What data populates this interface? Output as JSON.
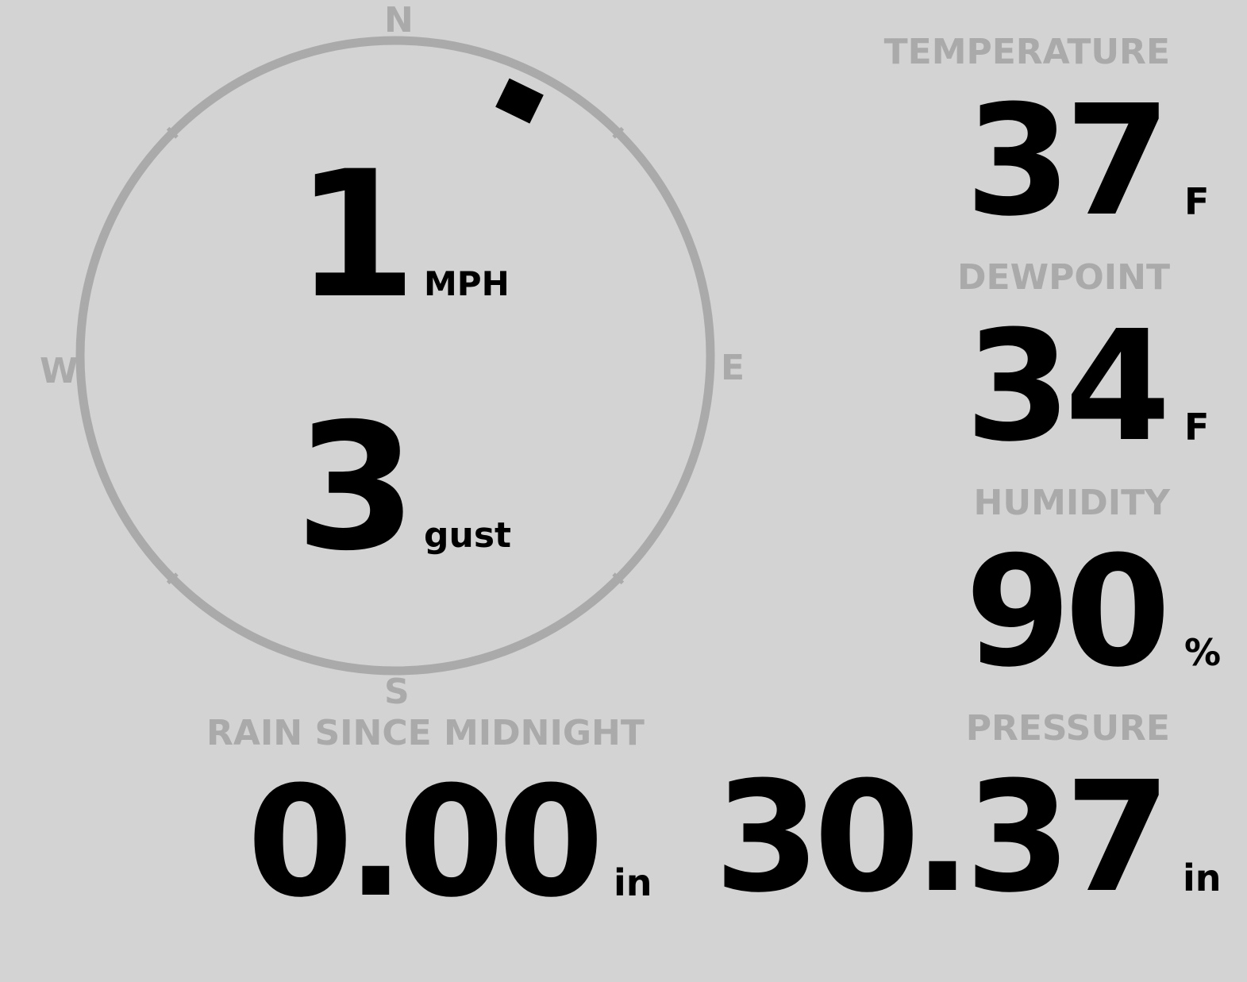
{
  "colors": {
    "background": "#d3d3d3",
    "label": "#aaaaaa",
    "value": "#000000"
  },
  "compass": {
    "n": "N",
    "e": "E",
    "s": "S",
    "w": "W",
    "wind_direction_deg": 26
  },
  "wind": {
    "speed": "1",
    "speed_unit": "MPH",
    "gust": "3",
    "gust_unit": "gust"
  },
  "temperature": {
    "label": "TEMPERATURE",
    "value": "37",
    "unit": "F"
  },
  "dewpoint": {
    "label": "DEWPOINT",
    "value": "34",
    "unit": "F"
  },
  "humidity": {
    "label": "HUMIDITY",
    "value": "90",
    "unit": "%"
  },
  "rain": {
    "label": "RAIN SINCE MIDNIGHT",
    "value": "0.00",
    "unit": "in"
  },
  "pressure": {
    "label": "PRESSURE",
    "value": "30.37",
    "unit": "in"
  }
}
